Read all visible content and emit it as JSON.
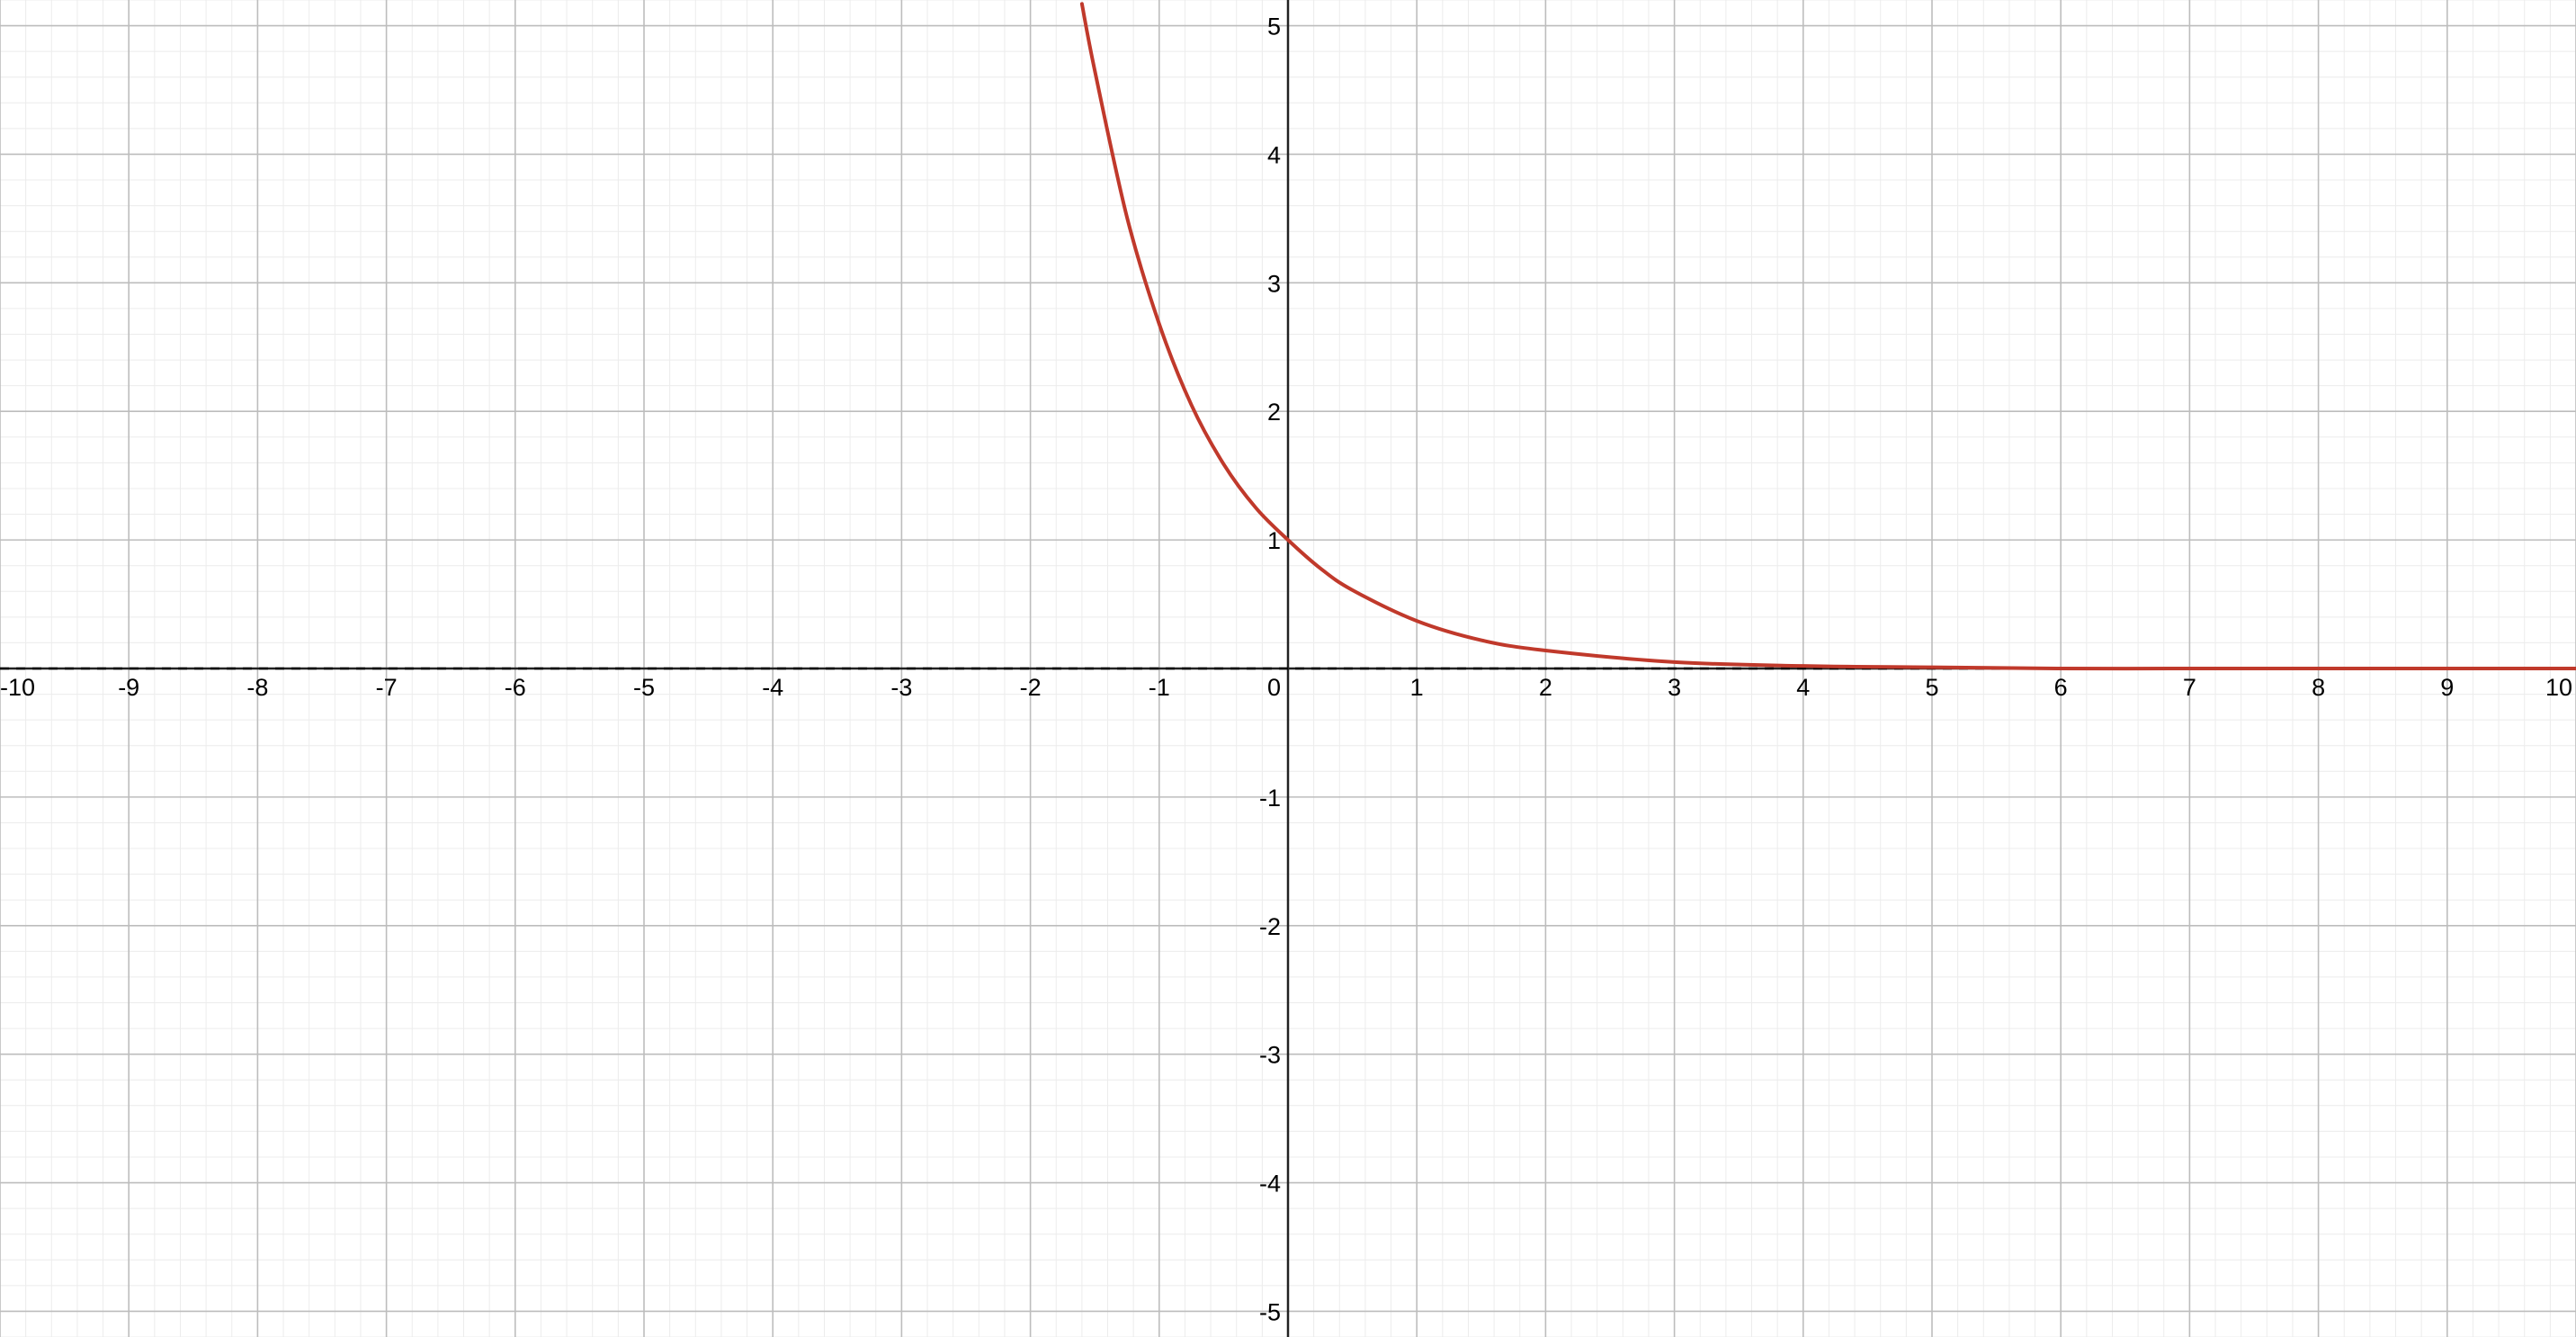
{
  "chart_data": {
    "type": "line",
    "title": "",
    "xlabel": "",
    "ylabel": "",
    "xlim": [
      -10,
      10
    ],
    "ylim": [
      -5.2,
      5.2
    ],
    "grid": true,
    "minor_grid_per_unit": 5,
    "x_tick_labels": [
      "-10",
      "-9",
      "-8",
      "-7",
      "-6",
      "-5",
      "-4",
      "-3",
      "-2",
      "-1",
      "0",
      "1",
      "2",
      "3",
      "4",
      "5",
      "6",
      "7",
      "8",
      "9",
      "10"
    ],
    "y_tick_labels": [
      "-5",
      "-4",
      "-3",
      "-2",
      "-1",
      "1",
      "2",
      "3",
      "4",
      "5"
    ],
    "series": [
      {
        "kind": "curve",
        "color": "#c0392b",
        "x": [
          -1.6,
          -1.5,
          -1.25,
          -1.0,
          -0.75,
          -0.5,
          -0.25,
          0,
          0.25,
          0.5,
          1,
          1.5,
          2,
          3,
          4,
          5,
          6,
          7,
          8,
          9,
          10
        ],
        "y": [
          5.17,
          4.65,
          3.51,
          2.68,
          2.05,
          1.59,
          1.25,
          1.0,
          0.78,
          0.61,
          0.37,
          0.22,
          0.14,
          0.05,
          0.02,
          0.01,
          0.0,
          0.0,
          0.0,
          0.0,
          0.0
        ]
      },
      {
        "kind": "asymptote",
        "style": "dashed",
        "color": "#000000",
        "x": [
          -10,
          10
        ],
        "y": [
          0,
          0
        ]
      }
    ]
  }
}
